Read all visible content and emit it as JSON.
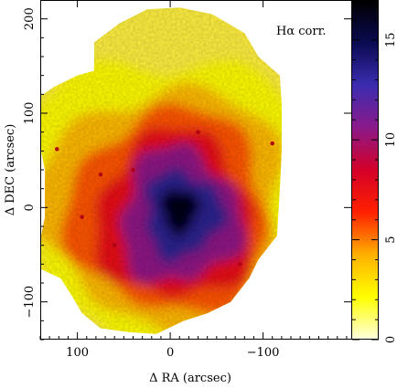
{
  "chart_data": {
    "type": "heatmap",
    "title": "",
    "annotation": "Hα corr.",
    "xlabel": "Δ RA (arcsec)",
    "ylabel": "Δ DEC (arcsec)",
    "xlim": [
      140,
      -195
    ],
    "ylim": [
      -140,
      220
    ],
    "x_direction": "decreasing to the right",
    "x_ticks": [
      100,
      0,
      -100
    ],
    "x_tick_labels": [
      "100",
      "0",
      "−100"
    ],
    "y_ticks": [
      -100,
      0,
      100,
      200
    ],
    "y_tick_labels": [
      "−100",
      "0",
      "100",
      "200"
    ],
    "colorbar": {
      "orientation": "vertical",
      "placement": "right",
      "range": [
        0,
        17
      ],
      "ticks": [
        0,
        5,
        10,
        15
      ],
      "tick_labels": [
        "0",
        "5",
        "10",
        "15"
      ],
      "colormap": [
        "#ffffe0",
        "#ffff00",
        "#ffb000",
        "#ff2000",
        "#d40028",
        "#8a1a8a",
        "#3a2cb0",
        "#0a0a50",
        "#000000"
      ]
    },
    "field_shape": "mosaic of hexagonal IFU pointings",
    "value_pattern": {
      "peak_center": [
        -5,
        -5
      ],
      "peak_value": 17,
      "background_value": 1.5,
      "description": "Emission peaks (near black, ~15–17) at the centre and falls off through blue (~10), red (~5) to yellow (~1–2) at the field edges"
    }
  }
}
